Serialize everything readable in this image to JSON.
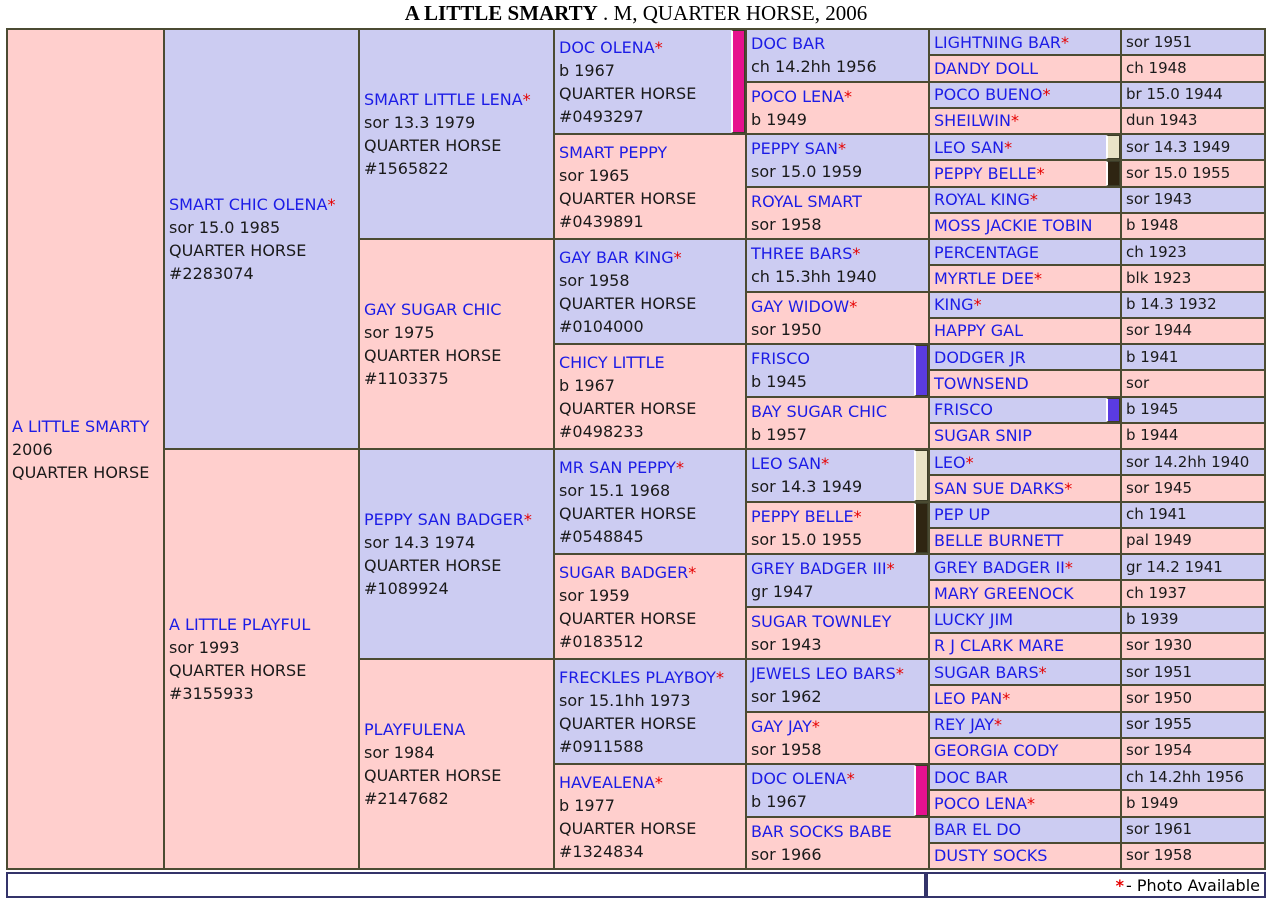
{
  "header": {
    "name": "A LITTLE SMARTY",
    "suffix": " . M, QUARTER HORSE, 2006"
  },
  "legend": {
    "asterisk": "*",
    "text": " - Photo Available"
  },
  "colors": {
    "sire_bg": "#ccccf2",
    "dam_bg": "#ffcfcd",
    "grid_border": "#4b4b32",
    "footer_border": "#34346a",
    "link_blue": "#1c1ce6",
    "asterisk_red": "#e60000",
    "swatch_magenta": "#e6118e",
    "swatch_purple": "#5a3be1",
    "swatch_beige": "#e9e3c7",
    "swatch_darkbrown": "#2f2512"
  },
  "generations": [
    {
      "span": 32,
      "cells": [
        {
          "name": "A LITTLE SMARTY",
          "ast": false,
          "details": [
            "2006",
            "QUARTER HORSE"
          ],
          "bg": "pink"
        }
      ]
    },
    {
      "span": 16,
      "cells": [
        {
          "name": "SMART CHIC OLENA",
          "ast": true,
          "details": [
            "sor 15.0 1985",
            "QUARTER HORSE",
            "#2283074"
          ],
          "bg": "blue"
        },
        {
          "name": "A LITTLE PLAYFUL",
          "ast": false,
          "details": [
            "sor 1993",
            "QUARTER HORSE",
            "#3155933"
          ],
          "bg": "pink"
        }
      ]
    },
    {
      "span": 8,
      "cells": [
        {
          "name": "SMART LITTLE LENA",
          "ast": true,
          "details": [
            "sor 13.3 1979",
            "QUARTER HORSE",
            "#1565822"
          ],
          "bg": "blue"
        },
        {
          "name": "GAY SUGAR CHIC",
          "ast": false,
          "details": [
            "sor 1975",
            "QUARTER HORSE",
            "#1103375"
          ],
          "bg": "pink"
        },
        {
          "name": "PEPPY SAN BADGER",
          "ast": true,
          "details": [
            "sor 14.3 1974",
            "QUARTER HORSE",
            "#1089924"
          ],
          "bg": "blue"
        },
        {
          "name": "PLAYFULENA",
          "ast": false,
          "details": [
            "sor 1984",
            "QUARTER HORSE",
            "#2147682"
          ],
          "bg": "pink"
        }
      ]
    },
    {
      "span": 4,
      "cells": [
        {
          "name": "DOC OLENA",
          "ast": true,
          "details": [
            "b 1967",
            "QUARTER HORSE",
            "#0493297"
          ],
          "bg": "blue",
          "swatch": "swatch_magenta"
        },
        {
          "name": "SMART PEPPY",
          "ast": false,
          "details": [
            "sor 1965",
            "QUARTER HORSE",
            "#0439891"
          ],
          "bg": "pink"
        },
        {
          "name": "GAY BAR KING",
          "ast": true,
          "details": [
            "sor 1958",
            "QUARTER HORSE",
            "#0104000"
          ],
          "bg": "blue"
        },
        {
          "name": "CHICY LITTLE",
          "ast": false,
          "details": [
            "b 1967",
            "QUARTER HORSE",
            "#0498233"
          ],
          "bg": "pink"
        },
        {
          "name": "MR SAN PEPPY",
          "ast": true,
          "details": [
            "sor 15.1 1968",
            "QUARTER HORSE",
            "#0548845"
          ],
          "bg": "blue"
        },
        {
          "name": "SUGAR BADGER",
          "ast": true,
          "details": [
            "sor 1959",
            "QUARTER HORSE",
            "#0183512"
          ],
          "bg": "pink"
        },
        {
          "name": "FRECKLES PLAYBOY",
          "ast": true,
          "details": [
            "sor 15.1hh 1973",
            "QUARTER HORSE",
            "#0911588"
          ],
          "bg": "blue"
        },
        {
          "name": "HAVEALENA",
          "ast": true,
          "details": [
            "b 1977",
            "QUARTER HORSE",
            "#1324834"
          ],
          "bg": "pink"
        }
      ]
    },
    {
      "span": 2,
      "cells": [
        {
          "name": "DOC BAR",
          "ast": false,
          "details": [
            "ch 14.2hh 1956"
          ],
          "bg": "blue"
        },
        {
          "name": "POCO LENA",
          "ast": true,
          "details": [
            "b 1949"
          ],
          "bg": "pink"
        },
        {
          "name": "PEPPY SAN",
          "ast": true,
          "details": [
            "sor 15.0 1959"
          ],
          "bg": "blue"
        },
        {
          "name": "ROYAL SMART",
          "ast": false,
          "details": [
            "sor 1958"
          ],
          "bg": "pink"
        },
        {
          "name": "THREE BARS",
          "ast": true,
          "details": [
            "ch 15.3hh 1940"
          ],
          "bg": "blue"
        },
        {
          "name": "GAY WIDOW",
          "ast": true,
          "details": [
            "sor 1950"
          ],
          "bg": "pink"
        },
        {
          "name": "FRISCO",
          "ast": false,
          "details": [
            "b 1945"
          ],
          "bg": "blue",
          "swatch": "swatch_purple"
        },
        {
          "name": "BAY SUGAR CHIC",
          "ast": false,
          "details": [
            "b 1957"
          ],
          "bg": "pink"
        },
        {
          "name": "LEO SAN",
          "ast": true,
          "details": [
            "sor 14.3 1949"
          ],
          "bg": "blue",
          "swatch": "swatch_beige"
        },
        {
          "name": "PEPPY BELLE",
          "ast": true,
          "details": [
            "sor 15.0 1955"
          ],
          "bg": "pink",
          "swatch": "swatch_darkbrown"
        },
        {
          "name": "GREY BADGER III",
          "ast": true,
          "details": [
            "gr 1947"
          ],
          "bg": "blue"
        },
        {
          "name": "SUGAR TOWNLEY",
          "ast": false,
          "details": [
            "sor 1943"
          ],
          "bg": "pink"
        },
        {
          "name": "JEWELS LEO BARS",
          "ast": true,
          "details": [
            "sor 1962"
          ],
          "bg": "blue"
        },
        {
          "name": "GAY JAY",
          "ast": true,
          "details": [
            "sor 1958"
          ],
          "bg": "pink"
        },
        {
          "name": "DOC OLENA",
          "ast": true,
          "details": [
            "b 1967"
          ],
          "bg": "blue",
          "swatch": "swatch_magenta"
        },
        {
          "name": "BAR SOCKS BABE",
          "ast": false,
          "details": [
            "sor 1966"
          ],
          "bg": "pink"
        }
      ]
    },
    {
      "span": 1,
      "cells": [
        {
          "name": "LIGHTNING BAR",
          "ast": true,
          "bg": "blue"
        },
        {
          "name": "DANDY DOLL",
          "ast": false,
          "bg": "pink"
        },
        {
          "name": "POCO BUENO",
          "ast": true,
          "bg": "blue"
        },
        {
          "name": "SHEILWIN",
          "ast": true,
          "bg": "pink"
        },
        {
          "name": "LEO SAN",
          "ast": true,
          "bg": "blue",
          "swatch": "swatch_beige"
        },
        {
          "name": "PEPPY BELLE",
          "ast": true,
          "bg": "pink",
          "swatch": "swatch_darkbrown"
        },
        {
          "name": "ROYAL KING",
          "ast": true,
          "bg": "blue"
        },
        {
          "name": "MOSS JACKIE TOBIN",
          "ast": false,
          "bg": "pink"
        },
        {
          "name": "PERCENTAGE",
          "ast": false,
          "bg": "blue"
        },
        {
          "name": "MYRTLE DEE",
          "ast": true,
          "bg": "pink"
        },
        {
          "name": "KING",
          "ast": true,
          "bg": "blue"
        },
        {
          "name": "HAPPY GAL",
          "ast": false,
          "bg": "pink"
        },
        {
          "name": "DODGER JR",
          "ast": false,
          "bg": "blue"
        },
        {
          "name": "TOWNSEND",
          "ast": false,
          "bg": "pink"
        },
        {
          "name": "FRISCO",
          "ast": false,
          "bg": "blue",
          "swatch": "swatch_purple"
        },
        {
          "name": "SUGAR SNIP",
          "ast": false,
          "bg": "pink"
        },
        {
          "name": "LEO",
          "ast": true,
          "bg": "blue"
        },
        {
          "name": "SAN SUE DARKS",
          "ast": true,
          "bg": "pink"
        },
        {
          "name": "PEP UP",
          "ast": false,
          "bg": "blue"
        },
        {
          "name": "BELLE BURNETT",
          "ast": false,
          "bg": "pink"
        },
        {
          "name": "GREY BADGER II",
          "ast": true,
          "bg": "blue"
        },
        {
          "name": "MARY GREENOCK",
          "ast": false,
          "bg": "pink"
        },
        {
          "name": "LUCKY JIM",
          "ast": false,
          "bg": "blue"
        },
        {
          "name": "R J CLARK MARE",
          "ast": false,
          "bg": "pink"
        },
        {
          "name": "SUGAR BARS",
          "ast": true,
          "bg": "blue"
        },
        {
          "name": "LEO PAN",
          "ast": true,
          "bg": "pink"
        },
        {
          "name": "REY JAY",
          "ast": true,
          "bg": "blue"
        },
        {
          "name": "GEORGIA CODY",
          "ast": false,
          "bg": "pink"
        },
        {
          "name": "DOC BAR",
          "ast": false,
          "bg": "blue"
        },
        {
          "name": "POCO LENA",
          "ast": true,
          "bg": "pink"
        },
        {
          "name": "BAR EL DO",
          "ast": false,
          "bg": "blue"
        },
        {
          "name": "DUSTY SOCKS",
          "ast": false,
          "bg": "pink"
        }
      ]
    },
    {
      "span": 1,
      "col7": true,
      "cells": [
        {
          "details": [
            "sor 1951"
          ],
          "bg": "blue"
        },
        {
          "details": [
            "ch 1948"
          ],
          "bg": "pink"
        },
        {
          "details": [
            "br 15.0 1944"
          ],
          "bg": "blue"
        },
        {
          "details": [
            "dun 1943"
          ],
          "bg": "pink"
        },
        {
          "details": [
            "sor 14.3 1949"
          ],
          "bg": "blue"
        },
        {
          "details": [
            "sor 15.0 1955"
          ],
          "bg": "pink"
        },
        {
          "details": [
            "sor 1943"
          ],
          "bg": "blue"
        },
        {
          "details": [
            "b 1948"
          ],
          "bg": "pink"
        },
        {
          "details": [
            "ch 1923"
          ],
          "bg": "blue"
        },
        {
          "details": [
            "blk 1923"
          ],
          "bg": "pink"
        },
        {
          "details": [
            "b 14.3 1932"
          ],
          "bg": "blue"
        },
        {
          "details": [
            "sor 1944"
          ],
          "bg": "pink"
        },
        {
          "details": [
            "b 1941"
          ],
          "bg": "blue"
        },
        {
          "details": [
            "sor"
          ],
          "bg": "pink"
        },
        {
          "details": [
            "b 1945"
          ],
          "bg": "blue"
        },
        {
          "details": [
            "b 1944"
          ],
          "bg": "pink"
        },
        {
          "details": [
            "sor 14.2hh 1940"
          ],
          "bg": "blue"
        },
        {
          "details": [
            "sor 1945"
          ],
          "bg": "pink"
        },
        {
          "details": [
            "ch 1941"
          ],
          "bg": "blue"
        },
        {
          "details": [
            "pal 1949"
          ],
          "bg": "pink"
        },
        {
          "details": [
            "gr 14.2 1941"
          ],
          "bg": "blue"
        },
        {
          "details": [
            "ch 1937"
          ],
          "bg": "pink"
        },
        {
          "details": [
            "b 1939"
          ],
          "bg": "blue"
        },
        {
          "details": [
            "sor 1930"
          ],
          "bg": "pink"
        },
        {
          "details": [
            "sor 1951"
          ],
          "bg": "blue"
        },
        {
          "details": [
            "sor 1950"
          ],
          "bg": "pink"
        },
        {
          "details": [
            "sor 1955"
          ],
          "bg": "blue"
        },
        {
          "details": [
            "sor 1954"
          ],
          "bg": "pink"
        },
        {
          "details": [
            "ch 14.2hh 1956"
          ],
          "bg": "blue"
        },
        {
          "details": [
            "b 1949"
          ],
          "bg": "pink"
        },
        {
          "details": [
            "sor 1961"
          ],
          "bg": "blue"
        },
        {
          "details": [
            "sor 1958"
          ],
          "bg": "pink"
        }
      ]
    }
  ]
}
